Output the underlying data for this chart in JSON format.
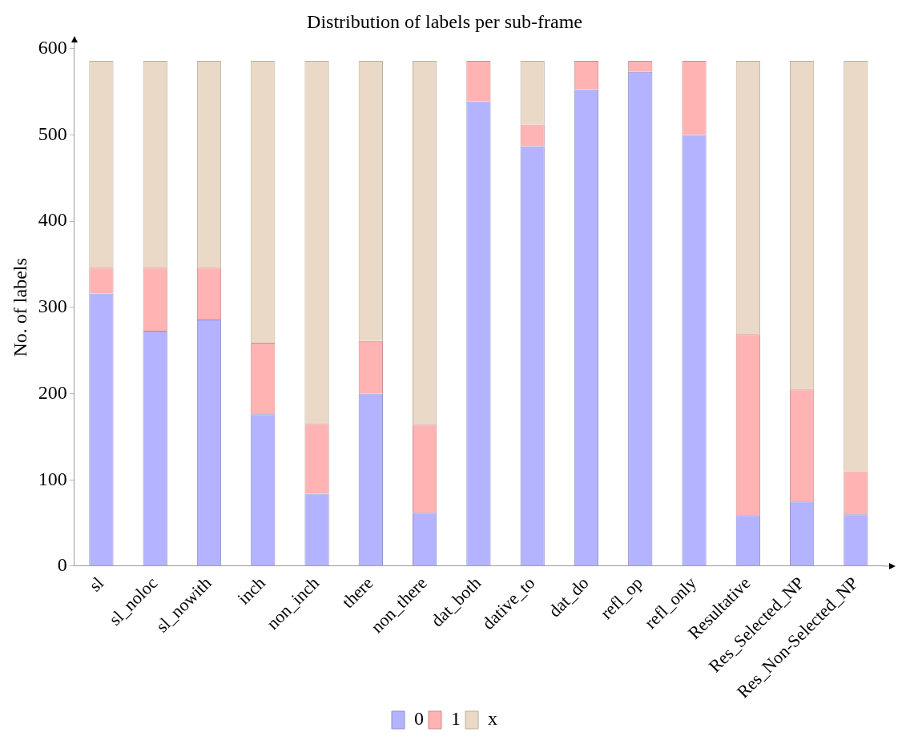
{
  "chart_data": {
    "type": "bar",
    "title": "Distribution of labels per sub-frame",
    "ylabel": "No. of labels",
    "categories": [
      "sl",
      "sl_noloc",
      "sl_nowith",
      "inch",
      "non_inch",
      "there",
      "non_there",
      "dat_both",
      "dative_to",
      "dat_do",
      "refl_op",
      "refl_only",
      "Resultative",
      "Res_Selected_NP",
      "Res_Non-Selected_NP"
    ],
    "series": [
      {
        "name": "0",
        "color": "#b3b3ff",
        "values": [
          316,
          273,
          286,
          176,
          84,
          200,
          62,
          539,
          487,
          553,
          573,
          500,
          59,
          75,
          60
        ]
      },
      {
        "name": "1",
        "color": "#ffb3b3",
        "values": [
          30,
          73,
          60,
          83,
          81,
          61,
          102,
          47,
          25,
          33,
          13,
          86,
          210,
          130,
          50
        ]
      },
      {
        "name": "x",
        "color": "#ead9c6",
        "values": [
          240,
          240,
          240,
          327,
          421,
          325,
          422,
          0,
          74,
          0,
          0,
          0,
          317,
          381,
          476
        ]
      }
    ],
    "stacked": true,
    "ylim": [
      0,
      600
    ],
    "yticks": [
      0,
      100,
      200,
      300,
      400,
      500,
      600
    ],
    "grid": false,
    "legend": "bottom"
  }
}
